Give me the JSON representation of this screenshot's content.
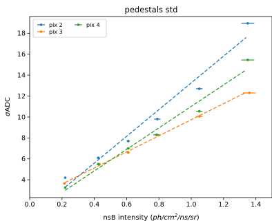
{
  "chart_data": {
    "type": "scatter",
    "title": "pedestals std",
    "xlabel_prefix": "nsB intensity (",
    "xlabel_italic": "ph/cm",
    "xlabel_sup": "2",
    "xlabel_italic2": "/ns/sr",
    "xlabel_suffix": ")",
    "ylabel_main": "σ",
    "ylabel_rest": "ADC",
    "xlim": [
      0.0,
      1.5
    ],
    "ylim": [
      2.3,
      19.6
    ],
    "xticks": [
      0.0,
      0.2,
      0.4,
      0.6,
      0.8,
      1.0,
      1.2,
      1.4
    ],
    "xtick_labels": [
      "0.0",
      "0.2",
      "0.4",
      "0.6",
      "0.8",
      "1.0",
      "1.2",
      "1.4"
    ],
    "yticks": [
      4,
      6,
      8,
      10,
      12,
      14,
      16,
      18
    ],
    "ytick_labels": [
      "4",
      "6",
      "8",
      "10",
      "12",
      "14",
      "16",
      "18"
    ],
    "grid": false,
    "legend_position": "top-left",
    "legend_columns": 2,
    "series": [
      {
        "name": "pix 2",
        "color": "#1f77b4",
        "x": [
          0.22,
          0.425,
          0.61,
          0.79,
          1.05,
          1.35
        ],
        "y": [
          4.2,
          6.1,
          7.7,
          9.8,
          12.7,
          18.95
        ],
        "xerr": [
          0.0,
          0.01,
          0.01,
          0.02,
          0.02,
          0.04
        ],
        "fit": [
          [
            0.22,
            3.3
          ],
          [
            1.34,
            17.6
          ]
        ]
      },
      {
        "name": "pix 3",
        "color": "#ff7f0e",
        "x": [
          0.215,
          0.43,
          0.61,
          0.79,
          1.05,
          1.36
        ],
        "y": [
          3.65,
          5.5,
          6.6,
          8.3,
          10.05,
          12.3
        ],
        "xerr": [
          0.0,
          0.01,
          0.01,
          0.02,
          0.02,
          0.04
        ],
        "fit": [
          [
            0.22,
            3.75
          ],
          [
            1.34,
            12.35
          ]
        ]
      },
      {
        "name": "pix 4",
        "color": "#2ca02c",
        "x": [
          0.22,
          0.425,
          0.61,
          0.785,
          1.05,
          1.35
        ],
        "y": [
          3.25,
          5.5,
          7.0,
          8.3,
          10.55,
          15.45
        ],
        "xerr": [
          0.0,
          0.01,
          0.01,
          0.02,
          0.02,
          0.04
        ],
        "fit": [
          [
            0.22,
            3.0
          ],
          [
            1.34,
            14.5
          ]
        ]
      }
    ]
  }
}
